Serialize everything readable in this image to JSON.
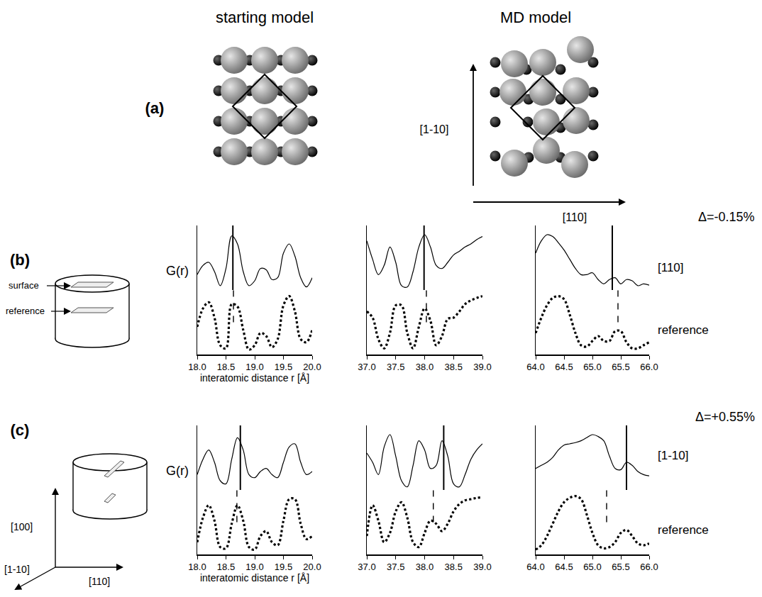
{
  "figure": {
    "panel_a": {
      "label": "(a)",
      "titles": [
        "starting model",
        "MD model"
      ],
      "directions": [
        "[1-10]",
        "[110]"
      ]
    },
    "panel_b": {
      "label": "(b)",
      "icon_labels": [
        "surface",
        "reference"
      ],
      "delta": "Δ=-0.15%"
    },
    "panel_c": {
      "label": "(c)",
      "directions": [
        "[100]",
        "[1-10]",
        "[110]"
      ],
      "delta": "Δ=+0.55%"
    }
  },
  "chart_data": [
    {
      "type": "line",
      "xlabel": "interatomic distance r [Å]",
      "ylabel": "G(r)",
      "tick_labels": "x",
      "x": [
        18.0,
        18.1,
        18.2,
        18.3,
        18.4,
        18.5,
        18.6,
        18.7,
        18.8,
        18.9,
        19.0,
        19.1,
        19.2,
        19.3,
        19.4,
        19.5,
        19.6,
        19.7,
        19.8,
        19.9,
        20.0
      ],
      "xlim": [
        18,
        20
      ],
      "xticks": [
        {
          "value": 18,
          "label": "18.0"
        },
        {
          "value": 18.5,
          "label": "18.5"
        },
        {
          "value": 19,
          "label": "19.0"
        },
        {
          "value": 19.5,
          "label": "19.5"
        },
        {
          "value": 20,
          "label": "20.0"
        }
      ],
      "ylim": [
        0,
        2.1
      ],
      "series": [
        {
          "name": "[110]",
          "color": "#000000",
          "line_style": "solid",
          "peak": 18.62,
          "values": [
            1.3,
            1.45,
            1.5,
            1.35,
            1.12,
            1.4,
            1.93,
            1.8,
            1.35,
            1.12,
            1.2,
            1.4,
            1.38,
            1.22,
            1.25,
            1.65,
            1.8,
            1.6,
            1.25,
            1.1,
            1.25
          ]
        },
        {
          "name": "reference",
          "color": "#000000",
          "line_style": "dotted",
          "peak": 18.63,
          "values": [
            0.45,
            0.75,
            0.85,
            0.6,
            0.15,
            0.1,
            0.82,
            0.78,
            0.4,
            0.08,
            0.15,
            0.35,
            0.3,
            0.12,
            0.25,
            0.8,
            0.95,
            0.7,
            0.25,
            0.2,
            0.4
          ]
        }
      ]
    },
    {
      "type": "line",
      "tick_labels": "x",
      "x": [
        37.0,
        37.1,
        37.2,
        37.3,
        37.4,
        37.5,
        37.6,
        37.7,
        37.8,
        37.9,
        38.0,
        38.1,
        38.2,
        38.3,
        38.4,
        38.5,
        38.6,
        38.7,
        38.8,
        38.9,
        39.0
      ],
      "xlim": [
        37,
        39
      ],
      "xticks": [
        {
          "value": 37,
          "label": "37.0"
        },
        {
          "value": 37.5,
          "label": "37.5"
        },
        {
          "value": 38,
          "label": "38.0"
        },
        {
          "value": 38.5,
          "label": "38.5"
        },
        {
          "value": 39,
          "label": "39.0"
        }
      ],
      "ylim": [
        0,
        2.1
      ],
      "series": [
        {
          "name": "[110]",
          "color": "#000000",
          "line_style": "solid",
          "peak": 37.99,
          "values": [
            1.85,
            1.55,
            1.3,
            1.45,
            1.75,
            1.5,
            1.12,
            1.1,
            1.35,
            1.75,
            1.95,
            1.75,
            1.45,
            1.4,
            1.5,
            1.62,
            1.68,
            1.75,
            1.8,
            1.87,
            1.92
          ]
        },
        {
          "name": "reference",
          "color": "#000000",
          "line_style": "dotted",
          "peak": 38.03,
          "values": [
            0.7,
            0.6,
            0.25,
            0.1,
            0.35,
            0.8,
            0.8,
            0.35,
            0.1,
            0.45,
            0.75,
            0.55,
            0.15,
            0.3,
            0.58,
            0.6,
            0.7,
            0.82,
            0.88,
            0.92,
            0.95
          ]
        }
      ]
    },
    {
      "type": "line",
      "tick_labels": "x",
      "x": [
        64.0,
        64.1,
        64.2,
        64.3,
        64.4,
        64.5,
        64.6,
        64.7,
        64.8,
        64.9,
        65.0,
        65.1,
        65.2,
        65.3,
        65.4,
        65.5,
        65.6,
        65.7,
        65.8,
        65.9,
        66.0
      ],
      "xlim": [
        64,
        66
      ],
      "xticks": [
        {
          "value": 64,
          "label": "64.0"
        },
        {
          "value": 64.5,
          "label": "64.5"
        },
        {
          "value": 65,
          "label": "65.0"
        },
        {
          "value": 65.5,
          "label": "65.5"
        },
        {
          "value": 66,
          "label": "66.0"
        }
      ],
      "ylim": [
        0,
        2.1
      ],
      "series": [
        {
          "name": "[110]",
          "color": "#000000",
          "line_style": "solid",
          "peak": 65.35,
          "values": [
            1.65,
            1.85,
            1.95,
            1.92,
            1.82,
            1.7,
            1.55,
            1.4,
            1.3,
            1.3,
            1.33,
            1.22,
            1.15,
            1.22,
            1.25,
            1.15,
            1.22,
            1.2,
            1.12,
            1.15,
            1.13
          ]
        },
        {
          "name": "reference",
          "color": "#000000",
          "line_style": "dotted",
          "peak": 65.45,
          "values": [
            0.35,
            0.6,
            0.8,
            0.92,
            0.95,
            0.9,
            0.65,
            0.35,
            0.15,
            0.13,
            0.22,
            0.3,
            0.22,
            0.22,
            0.38,
            0.38,
            0.2,
            0.1,
            0.1,
            0.15,
            0.2
          ]
        }
      ]
    },
    {
      "type": "line",
      "xlabel": "interatomic distance r [Å]",
      "ylabel": "G(r)",
      "tick_labels": "x",
      "x": [
        18.0,
        18.1,
        18.2,
        18.3,
        18.4,
        18.5,
        18.6,
        18.7,
        18.8,
        18.9,
        19.0,
        19.1,
        19.2,
        19.3,
        19.4,
        19.5,
        19.6,
        19.7,
        19.8,
        19.9,
        20.0
      ],
      "xlim": [
        18,
        20
      ],
      "xticks": [
        {
          "value": 18,
          "label": "18.0"
        },
        {
          "value": 18.5,
          "label": "18.5"
        },
        {
          "value": 19,
          "label": "19.0"
        },
        {
          "value": 19.5,
          "label": "19.5"
        },
        {
          "value": 20,
          "label": "20.0"
        }
      ],
      "ylim": [
        0,
        2.1
      ],
      "series": [
        {
          "name": "[1-10]",
          "color": "#000000",
          "line_style": "solid",
          "peak": 18.75,
          "values": [
            1.3,
            1.55,
            1.7,
            1.5,
            1.2,
            1.15,
            1.55,
            1.9,
            1.7,
            1.3,
            1.25,
            1.35,
            1.4,
            1.3,
            1.25,
            1.5,
            1.75,
            1.8,
            1.5,
            1.3,
            1.35
          ]
        },
        {
          "name": "reference",
          "color": "#000000",
          "line_style": "dotted",
          "peak": 18.69,
          "values": [
            0.2,
            0.6,
            0.8,
            0.55,
            0.12,
            0.1,
            0.5,
            0.8,
            0.55,
            0.12,
            0.08,
            0.3,
            0.38,
            0.2,
            0.15,
            0.55,
            0.9,
            0.9,
            0.5,
            0.25,
            0.3
          ]
        }
      ]
    },
    {
      "type": "line",
      "tick_labels": "x",
      "x": [
        37.0,
        37.1,
        37.2,
        37.3,
        37.4,
        37.5,
        37.6,
        37.7,
        37.8,
        37.9,
        38.0,
        38.1,
        38.2,
        38.3,
        38.4,
        38.5,
        38.6,
        38.7,
        38.8,
        38.9,
        39.0
      ],
      "xlim": [
        37,
        39
      ],
      "xticks": [
        {
          "value": 37,
          "label": "37.0"
        },
        {
          "value": 37.5,
          "label": "37.5"
        },
        {
          "value": 38,
          "label": "38.0"
        },
        {
          "value": 38.5,
          "label": "38.5"
        },
        {
          "value": 39,
          "label": "39.0"
        }
      ],
      "ylim": [
        0,
        2.1
      ],
      "series": [
        {
          "name": "[1-10]",
          "color": "#000000",
          "line_style": "solid",
          "peak": 38.33,
          "values": [
            1.65,
            1.5,
            1.3,
            1.75,
            1.95,
            1.6,
            1.2,
            1.1,
            1.45,
            1.85,
            1.7,
            1.4,
            1.45,
            1.85,
            1.6,
            1.15,
            1.1,
            1.3,
            1.55,
            1.7,
            1.8
          ]
        },
        {
          "name": "reference",
          "color": "#000000",
          "line_style": "dotted",
          "peak": 38.15,
          "values": [
            0.3,
            0.8,
            0.55,
            0.2,
            0.35,
            0.7,
            0.85,
            0.6,
            0.2,
            0.12,
            0.35,
            0.55,
            0.5,
            0.38,
            0.5,
            0.7,
            0.82,
            0.88,
            0.9,
            0.92,
            0.93
          ]
        }
      ]
    },
    {
      "type": "line",
      "tick_labels": "x",
      "x": [
        64.0,
        64.1,
        64.2,
        64.3,
        64.4,
        64.5,
        64.6,
        64.7,
        64.8,
        64.9,
        65.0,
        65.1,
        65.2,
        65.3,
        65.4,
        65.5,
        65.6,
        65.7,
        65.8,
        65.9,
        66.0
      ],
      "xlim": [
        64,
        66
      ],
      "xticks": [
        {
          "value": 64,
          "label": "64.0"
        },
        {
          "value": 64.5,
          "label": "64.5"
        },
        {
          "value": 65,
          "label": "65.0"
        },
        {
          "value": 65.5,
          "label": "65.5"
        },
        {
          "value": 66,
          "label": "66.0"
        }
      ],
      "ylim": [
        0,
        2.1
      ],
      "series": [
        {
          "name": "[1-10]",
          "color": "#000000",
          "line_style": "solid",
          "peak": 65.6,
          "values": [
            1.4,
            1.45,
            1.5,
            1.58,
            1.7,
            1.78,
            1.8,
            1.82,
            1.85,
            1.9,
            1.95,
            1.92,
            1.85,
            1.6,
            1.4,
            1.38,
            1.5,
            1.45,
            1.35,
            1.3,
            1.28
          ]
        },
        {
          "name": "reference",
          "color": "#000000",
          "line_style": "dotted",
          "peak": 65.25,
          "values": [
            0.08,
            0.15,
            0.3,
            0.5,
            0.7,
            0.85,
            0.92,
            0.95,
            0.9,
            0.65,
            0.35,
            0.15,
            0.1,
            0.12,
            0.2,
            0.35,
            0.4,
            0.3,
            0.18,
            0.15,
            0.18
          ]
        }
      ]
    }
  ]
}
